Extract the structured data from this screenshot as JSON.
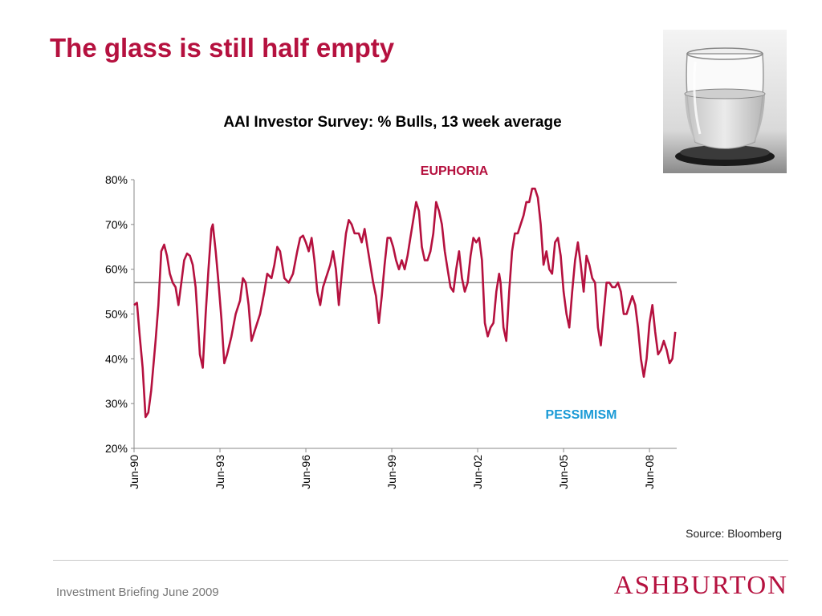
{
  "slide": {
    "title": "The glass is still half empty",
    "source": "Source: Bloomberg",
    "footer": "Investment Briefing June 2009",
    "logo_text": "ASHBURTON",
    "image": "glass-of-water-photo",
    "accent_color": "#b5113f"
  },
  "chart_data": {
    "type": "line",
    "title": "AAI Investor Survey: % Bulls, 13 week average",
    "xlabel": "",
    "ylabel": "",
    "ylim": [
      20,
      80
    ],
    "yticks": [
      "20%",
      "30%",
      "40%",
      "50%",
      "60%",
      "70%",
      "80%"
    ],
    "xlim": [
      1990.45,
      2009.4
    ],
    "xticks": [
      {
        "label": "Jun-90",
        "x": 1990.45
      },
      {
        "label": "Jun-93",
        "x": 1993.45
      },
      {
        "label": "Jun-96",
        "x": 1996.45
      },
      {
        "label": "Jun-99",
        "x": 1999.45
      },
      {
        "label": "Jun-02",
        "x": 2002.45
      },
      {
        "label": "Jun-05",
        "x": 2005.45
      },
      {
        "label": "Jun-08",
        "x": 2008.45
      }
    ],
    "grid": false,
    "reference_line": {
      "value": 57
    },
    "annotations": [
      {
        "text": "EUPHORIA",
        "color": "#b5113f"
      },
      {
        "text": "PESSIMISM",
        "color": "#1a9ad6"
      }
    ],
    "series": [
      {
        "color": "#b5113f",
        "points": [
          [
            1990.45,
            52
          ],
          [
            1990.55,
            52.5
          ],
          [
            1990.65,
            45
          ],
          [
            1990.75,
            38
          ],
          [
            1990.85,
            27
          ],
          [
            1990.95,
            28
          ],
          [
            1991.05,
            33
          ],
          [
            1991.2,
            44
          ],
          [
            1991.3,
            52
          ],
          [
            1991.4,
            64
          ],
          [
            1991.5,
            65.5
          ],
          [
            1991.6,
            63
          ],
          [
            1991.7,
            59
          ],
          [
            1991.8,
            57
          ],
          [
            1991.9,
            56
          ],
          [
            1992.0,
            52
          ],
          [
            1992.1,
            57
          ],
          [
            1992.2,
            62
          ],
          [
            1992.3,
            63.5
          ],
          [
            1992.4,
            63
          ],
          [
            1992.5,
            61
          ],
          [
            1992.6,
            56
          ],
          [
            1992.7,
            46
          ],
          [
            1992.75,
            41
          ],
          [
            1992.85,
            38
          ],
          [
            1992.95,
            50
          ],
          [
            1993.05,
            60
          ],
          [
            1993.15,
            69
          ],
          [
            1993.2,
            70
          ],
          [
            1993.3,
            64
          ],
          [
            1993.4,
            57
          ],
          [
            1993.5,
            49
          ],
          [
            1993.6,
            39
          ],
          [
            1993.7,
            41
          ],
          [
            1993.85,
            45
          ],
          [
            1994.0,
            50
          ],
          [
            1994.15,
            53
          ],
          [
            1994.25,
            58
          ],
          [
            1994.35,
            57
          ],
          [
            1994.45,
            52
          ],
          [
            1994.55,
            44
          ],
          [
            1994.7,
            47
          ],
          [
            1994.85,
            50
          ],
          [
            1995.0,
            55
          ],
          [
            1995.1,
            59
          ],
          [
            1995.25,
            58
          ],
          [
            1995.35,
            61
          ],
          [
            1995.45,
            65
          ],
          [
            1995.55,
            64
          ],
          [
            1995.7,
            58
          ],
          [
            1995.85,
            57
          ],
          [
            1996.0,
            59
          ],
          [
            1996.15,
            64
          ],
          [
            1996.25,
            67
          ],
          [
            1996.35,
            67.5
          ],
          [
            1996.45,
            66
          ],
          [
            1996.55,
            64
          ],
          [
            1996.65,
            67
          ],
          [
            1996.75,
            62
          ],
          [
            1996.85,
            55
          ],
          [
            1996.95,
            52
          ],
          [
            1997.05,
            56
          ],
          [
            1997.15,
            58
          ],
          [
            1997.3,
            61
          ],
          [
            1997.4,
            64
          ],
          [
            1997.5,
            60
          ],
          [
            1997.6,
            52
          ],
          [
            1997.75,
            62
          ],
          [
            1997.85,
            68
          ],
          [
            1997.95,
            71
          ],
          [
            1998.05,
            70
          ],
          [
            1998.15,
            68
          ],
          [
            1998.3,
            68
          ],
          [
            1998.4,
            66
          ],
          [
            1998.5,
            69
          ],
          [
            1998.6,
            65
          ],
          [
            1998.7,
            61
          ],
          [
            1998.8,
            57
          ],
          [
            1998.9,
            54
          ],
          [
            1999.0,
            48
          ],
          [
            1999.1,
            54
          ],
          [
            1999.2,
            61
          ],
          [
            1999.3,
            67
          ],
          [
            1999.4,
            67
          ],
          [
            1999.5,
            65
          ],
          [
            1999.6,
            62
          ],
          [
            1999.7,
            60
          ],
          [
            1999.8,
            62
          ],
          [
            1999.9,
            60
          ],
          [
            2000.0,
            63
          ],
          [
            2000.1,
            67
          ],
          [
            2000.2,
            71
          ],
          [
            2000.3,
            75
          ],
          [
            2000.4,
            73
          ],
          [
            2000.5,
            65
          ],
          [
            2000.6,
            62
          ],
          [
            2000.7,
            62
          ],
          [
            2000.8,
            64
          ],
          [
            2000.9,
            68
          ],
          [
            2001.0,
            75
          ],
          [
            2001.1,
            73
          ],
          [
            2001.2,
            70
          ],
          [
            2001.3,
            64
          ],
          [
            2001.4,
            60
          ],
          [
            2001.5,
            56
          ],
          [
            2001.6,
            55
          ],
          [
            2001.7,
            60
          ],
          [
            2001.8,
            64
          ],
          [
            2001.9,
            58
          ],
          [
            2002.0,
            55
          ],
          [
            2002.1,
            57
          ],
          [
            2002.2,
            63
          ],
          [
            2002.3,
            67
          ],
          [
            2002.4,
            66
          ],
          [
            2002.5,
            67
          ],
          [
            2002.6,
            62
          ],
          [
            2002.7,
            48
          ],
          [
            2002.8,
            45
          ],
          [
            2002.9,
            47
          ],
          [
            2003.0,
            48
          ],
          [
            2003.1,
            55
          ],
          [
            2003.2,
            59
          ],
          [
            2003.25,
            57
          ],
          [
            2003.35,
            47
          ],
          [
            2003.45,
            44
          ],
          [
            2003.55,
            55
          ],
          [
            2003.65,
            64
          ],
          [
            2003.75,
            68
          ],
          [
            2003.85,
            68
          ],
          [
            2003.95,
            70
          ],
          [
            2004.05,
            72
          ],
          [
            2004.15,
            75
          ],
          [
            2004.25,
            75
          ],
          [
            2004.35,
            78
          ],
          [
            2004.45,
            78
          ],
          [
            2004.55,
            76
          ],
          [
            2004.65,
            70
          ],
          [
            2004.75,
            61
          ],
          [
            2004.85,
            64
          ],
          [
            2004.95,
            60
          ],
          [
            2005.05,
            59
          ],
          [
            2005.15,
            66
          ],
          [
            2005.25,
            67
          ],
          [
            2005.35,
            63
          ],
          [
            2005.45,
            55
          ],
          [
            2005.55,
            50
          ],
          [
            2005.65,
            47
          ],
          [
            2005.75,
            55
          ],
          [
            2005.85,
            62
          ],
          [
            2005.95,
            66
          ],
          [
            2006.05,
            61
          ],
          [
            2006.15,
            55
          ],
          [
            2006.25,
            63
          ],
          [
            2006.35,
            61
          ],
          [
            2006.45,
            58
          ],
          [
            2006.55,
            57
          ],
          [
            2006.65,
            47
          ],
          [
            2006.75,
            43
          ],
          [
            2006.85,
            50
          ],
          [
            2006.95,
            57
          ],
          [
            2007.05,
            57
          ],
          [
            2007.15,
            56
          ],
          [
            2007.25,
            56
          ],
          [
            2007.35,
            57
          ],
          [
            2007.45,
            55
          ],
          [
            2007.55,
            50
          ],
          [
            2007.65,
            50
          ],
          [
            2007.75,
            52
          ],
          [
            2007.85,
            54
          ],
          [
            2007.95,
            52
          ],
          [
            2008.05,
            47
          ],
          [
            2008.15,
            40
          ],
          [
            2008.25,
            36
          ],
          [
            2008.35,
            40
          ],
          [
            2008.45,
            48
          ],
          [
            2008.55,
            52
          ],
          [
            2008.65,
            46
          ],
          [
            2008.75,
            41
          ],
          [
            2008.85,
            42
          ],
          [
            2008.95,
            44
          ],
          [
            2009.05,
            42
          ],
          [
            2009.15,
            39
          ],
          [
            2009.25,
            40
          ],
          [
            2009.35,
            46
          ]
        ]
      }
    ]
  }
}
